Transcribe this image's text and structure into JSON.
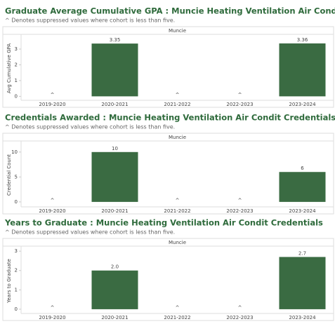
{
  "chart_data": [
    {
      "type": "bar",
      "title": "Graduate Average Cumulative GPA : Muncie Heating Ventilation Air Condit Credentials",
      "subtitle": "^ Denotes suppressed values where cohort is less than five.",
      "panel": "Muncie",
      "y_label": "Avg Cumulative GPA",
      "categories": [
        "2019-2020",
        "2020-2021",
        "2021-2022",
        "2022-2023",
        "2023-2024"
      ],
      "values": [
        null,
        3.35,
        null,
        null,
        3.36
      ],
      "value_labels": [
        "^",
        "3.35",
        "^",
        "^",
        "3.36"
      ],
      "color": "#3a6b42",
      "ylim": [
        -0.25,
        3.8
      ],
      "yticks": [
        0,
        1,
        2,
        3
      ]
    },
    {
      "type": "bar",
      "title": "Credentials Awarded : Muncie Heating Ventilation Air Condit Credentials",
      "subtitle": "^ Denotes suppressed values where cohort is less than five.",
      "panel": "Muncie",
      "y_label": "Credential Count",
      "categories": [
        "2019-2020",
        "2020-2021",
        "2021-2022",
        "2022-2023",
        "2023-2024"
      ],
      "values": [
        null,
        10,
        null,
        null,
        6
      ],
      "value_labels": [
        "^",
        "10",
        "^",
        "^",
        "6"
      ],
      "color": "#3a6b42",
      "ylim": [
        -1,
        11.8
      ],
      "yticks": [
        0,
        5,
        10
      ]
    },
    {
      "type": "bar",
      "title": "Years to Graduate : Muncie Heating Ventilation Air Condit Credentials",
      "subtitle": "^ Denotes suppressed values where cohort is less than five.",
      "panel": "Muncie",
      "y_label": "Years to Graduate",
      "categories": [
        "2019-2020",
        "2020-2021",
        "2021-2022",
        "2022-2023",
        "2023-2024"
      ],
      "values": [
        null,
        2.0,
        null,
        null,
        2.7
      ],
      "value_labels": [
        "^",
        "2.0",
        "^",
        "^",
        "2.7"
      ],
      "color": "#3a6b42",
      "ylim": [
        -0.22,
        3.15
      ],
      "yticks": [
        0,
        1,
        2,
        3
      ]
    }
  ]
}
